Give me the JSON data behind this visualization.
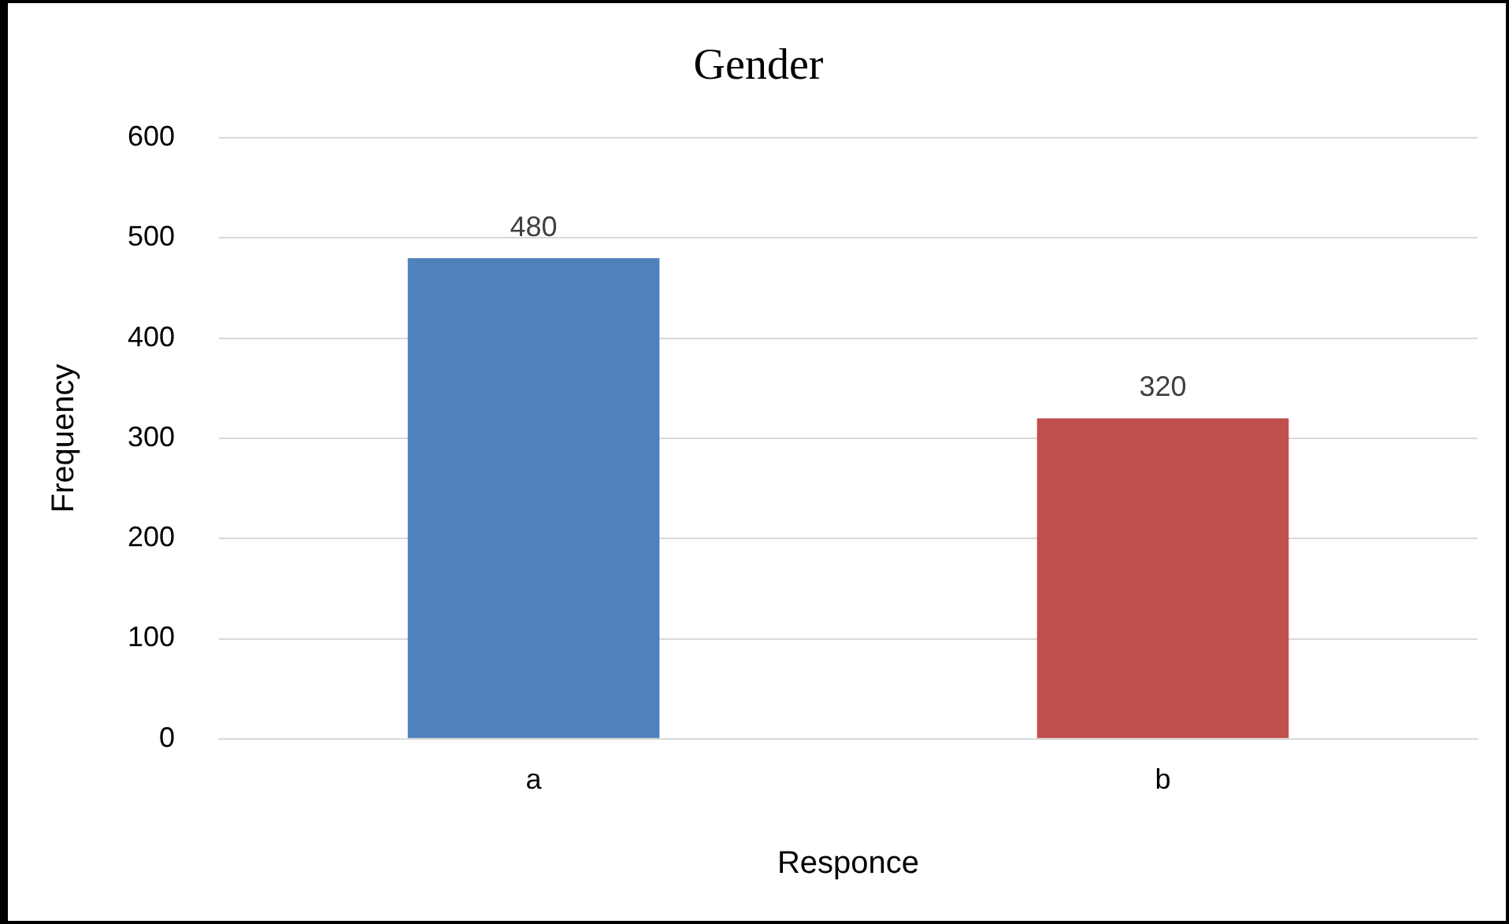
{
  "chart_data": {
    "type": "bar",
    "title": "Gender",
    "xlabel": "Responce",
    "ylabel": "Frequency",
    "categories": [
      "a",
      "b"
    ],
    "values": [
      480,
      320
    ],
    "colors": [
      "#4f81bd",
      "#c0504d"
    ],
    "ylim": [
      0,
      600
    ],
    "yticks": [
      0,
      100,
      200,
      300,
      400,
      500,
      600
    ],
    "grid": "y",
    "data_labels": true,
    "legend": false
  }
}
